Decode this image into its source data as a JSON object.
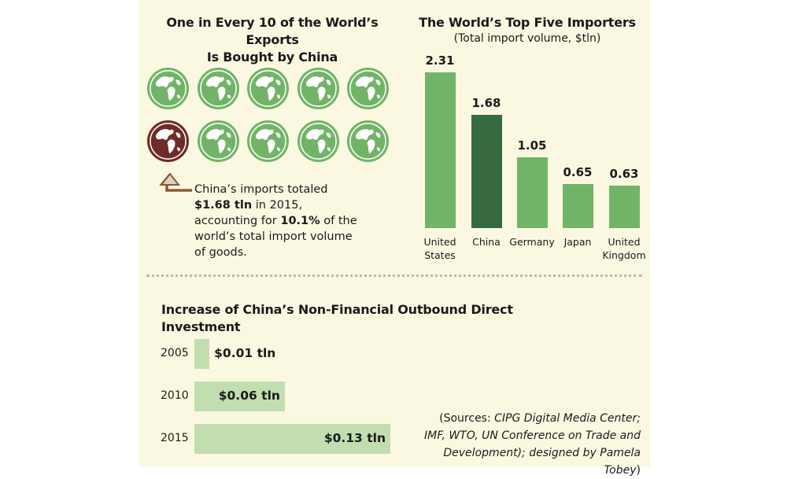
{
  "left_panel": {
    "title_line1": "One in Every 10 of the World’s Exports",
    "title_line2": "Is Bought by China",
    "globes_total": 10,
    "globes_highlighted": 1,
    "note": {
      "part1": "China’s imports totaled ",
      "amount": "$1.68 tln",
      "part2": " in 2015, accounting for ",
      "share": "10.1%",
      "part3": " of the world’s total import volume of goods."
    }
  },
  "chart_data": [
    {
      "type": "bar",
      "title": "The World’s Top Five Importers",
      "subtitle": "(Total import volume, $tln)",
      "categories": [
        "United States",
        "China",
        "Germany",
        "Japan",
        "United Kingdom"
      ],
      "values": [
        2.31,
        1.68,
        1.05,
        0.65,
        0.63
      ],
      "value_labels": [
        "2.31",
        "1.68",
        "1.05",
        "0.65",
        "0.63"
      ],
      "ylim": [
        0,
        2.31
      ],
      "highlight_category": "China"
    },
    {
      "type": "bar",
      "orientation": "horizontal",
      "title": "Increase of China’s Non-Financial Outbound Direct Investment",
      "categories": [
        "2005",
        "2010",
        "2015"
      ],
      "values": [
        0.01,
        0.06,
        0.13
      ],
      "value_labels": [
        "$0.01 tln",
        "$0.06 tln",
        "$0.13 tln"
      ]
    }
  ],
  "sources": {
    "line1_a": "(Sources: ",
    "line1_b": "CIPG Digital Media Center;",
    "line2": "IMF, WTO, UN Conference on Trade and",
    "line3_a": "Development); designed by ",
    "line3_b": "Pamela Tobey",
    "line3_c": ")"
  },
  "colors": {
    "background": "#fbf8e2",
    "globe_green": "#72b467",
    "globe_highlight": "#6f2b28",
    "bar_green": "#72b467",
    "bar_highlight": "#356b3e",
    "odi_bar": "#c2ddb0",
    "arrow": "#8a5a35"
  }
}
